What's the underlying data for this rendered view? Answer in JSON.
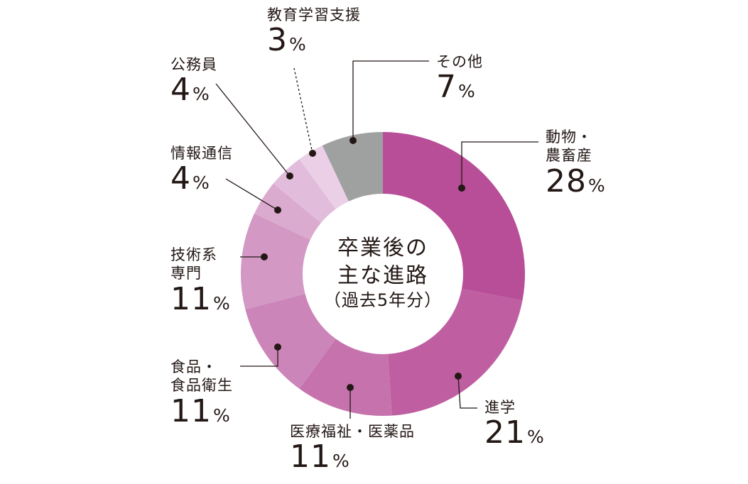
{
  "chart_data": {
    "type": "pie",
    "center_label": {
      "line1": "卒業後の",
      "line2": "主な進路",
      "line3": "（過去5年分）"
    },
    "unit": "%",
    "slices": [
      {
        "label": "動物・農畜産",
        "label_lines": [
          "動物・",
          "農畜産"
        ],
        "value": 28,
        "color": "#b84d98"
      },
      {
        "label": "進学",
        "label_lines": [
          "進学"
        ],
        "value": 21,
        "color": "#bf5fa2"
      },
      {
        "label": "医療福祉・医薬品",
        "label_lines": [
          "医療福祉・医薬品"
        ],
        "value": 11,
        "color": "#c673ad"
      },
      {
        "label": "食品・食品衛生",
        "label_lines": [
          "食品・",
          "食品衛生"
        ],
        "value": 11,
        "color": "#cc85b8"
      },
      {
        "label": "技術系専門",
        "label_lines": [
          "技術系",
          "専門"
        ],
        "value": 11,
        "color": "#d398c3"
      },
      {
        "label": "情報通信",
        "label_lines": [
          "情報通信"
        ],
        "value": 4,
        "color": "#dbabcf"
      },
      {
        "label": "公務員",
        "label_lines": [
          "公務員"
        ],
        "value": 4,
        "color": "#e2bddb"
      },
      {
        "label": "教育学習支援",
        "label_lines": [
          "教育学習支援"
        ],
        "value": 3,
        "color": "#eacfe6"
      },
      {
        "label": "その他",
        "label_lines": [
          "その他"
        ],
        "value": 7,
        "color": "#9fa0a0"
      }
    ]
  }
}
